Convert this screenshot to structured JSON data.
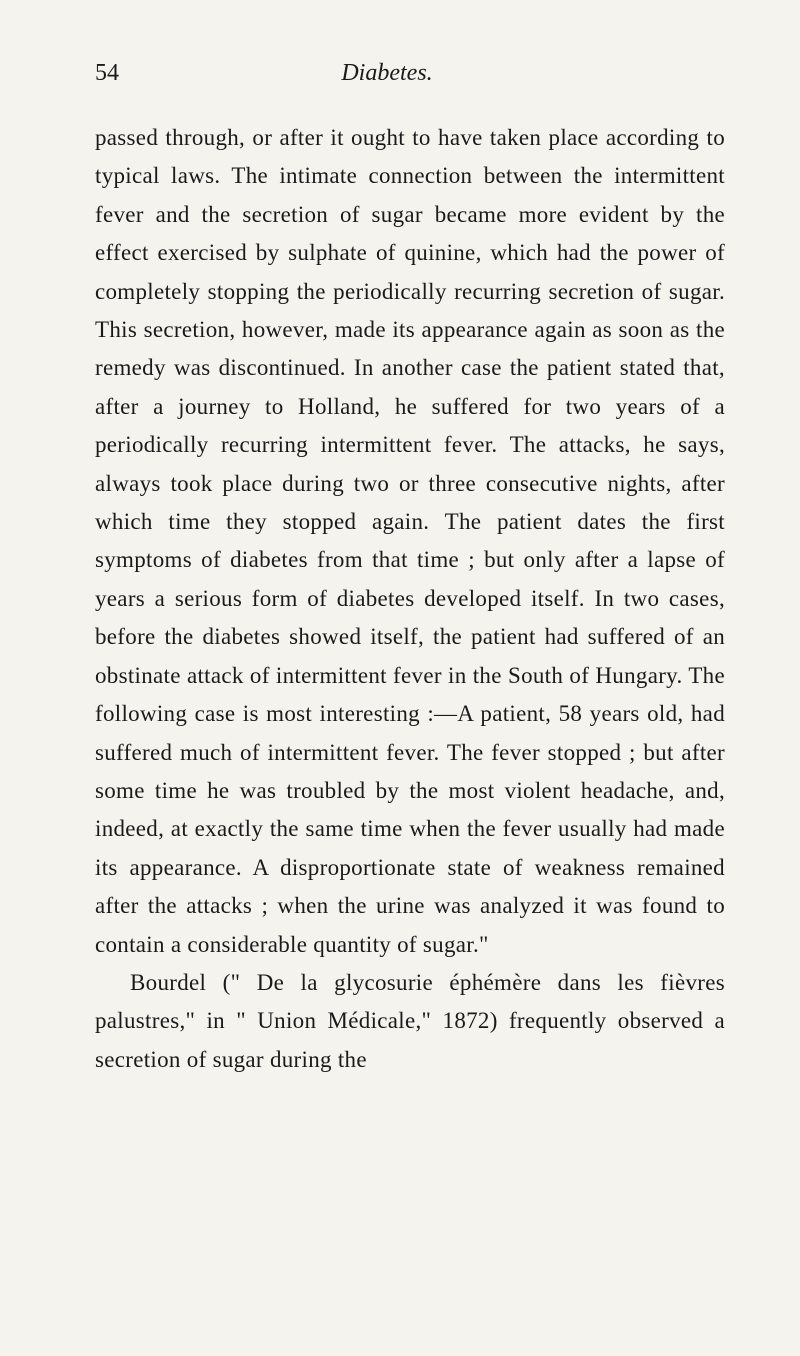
{
  "page_number": "54",
  "heading": "Diabetes.",
  "body_text": "passed through, or after it ought to have taken place according to typical laws. The intimate connection between the intermittent fever and the secretion of sugar became more evident by the effect exercised by sulphate of quinine, which had the power of completely stopping the periodically recurring secretion of sugar. This secretion, however, made its appearance again as soon as the remedy was discontinued. In another case the patient stated that, after a journey to Holland, he suffered for two years of a periodically recurring intermittent fever. The attacks, he says, always took place during two or three consecutive nights, after which time they stopped again. The patient dates the first symptoms of diabetes from that time ; but only after a lapse of years a serious form of diabetes developed itself. In two cases, before the diabetes showed itself, the patient had suffered of an obstinate attack of intermittent fever in the South of Hungary. The following case is most interesting :—A patient, 58 years old, had suffered much of intermittent fever. The fever stopped ; but after some time he was troubled by the most violent headache, and, indeed, at exactly the same time when the fever usually had made its appearance. A disproportionate state of weakness remained after the attacks ; when the urine was analyzed it was found to contain a considerable quantity of sugar.\"",
  "paragraph2": "Bourdel (\" De la glycosurie éphémère dans les fièvres palustres,\" in \" Union Médicale,\" 1872) frequently observed a secretion of sugar during the",
  "colors": {
    "background": "#f5f3ed",
    "text": "#1a1a1a"
  },
  "typography": {
    "body_fontsize": 23,
    "heading_fontsize": 24,
    "page_number_fontsize": 24,
    "line_height": 1.67,
    "font_family": "Georgia, Times New Roman, serif"
  }
}
